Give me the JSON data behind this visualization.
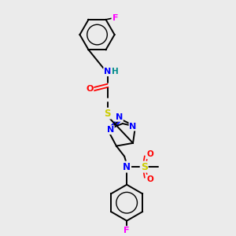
{
  "bg_color": "#ebebeb",
  "colors": {
    "C": "#000000",
    "N": "#0000ff",
    "O": "#ff0000",
    "S": "#cccc00",
    "F": "#ff00ff",
    "H": "#008b8b",
    "bond": "#000000"
  },
  "figsize": [
    3.0,
    3.0
  ],
  "dpi": 100
}
